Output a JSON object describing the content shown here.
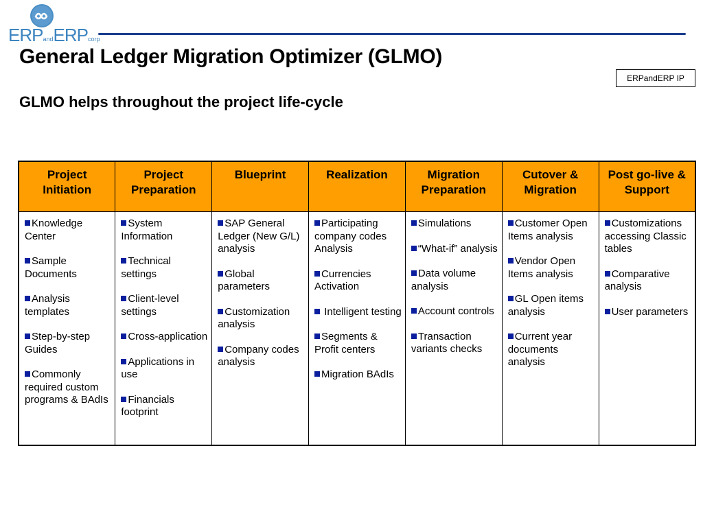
{
  "logo": {
    "part1": "ERP",
    "part2": "and",
    "part3": "ERP",
    "part4": "corp"
  },
  "title": "General Ledger Migration Optimizer (GLMO)",
  "subtitle": "GLMO helps throughout the project life-cycle",
  "ip_label": "ERPandERP IP",
  "colors": {
    "header_bg": "#ff9e00",
    "bullet": "#0b1f9e",
    "rule": "#1a3d8f",
    "logo": "#3d85c0"
  },
  "table": {
    "headers": [
      "Project Initiation",
      "Project Preparation",
      "Blueprint",
      "Realization",
      "Migration Preparation",
      "Cutover & Migration",
      "Post go-live & Support"
    ],
    "columns": [
      [
        "Knowledge Center",
        "Sample Documents",
        "Analysis templates",
        "Step-by-step Guides",
        "Commonly required custom programs & BAdIs"
      ],
      [
        "System Information",
        "Technical settings",
        "Client-level settings",
        "Cross-application",
        "Applications in use",
        "Financials footprint"
      ],
      [
        "SAP General Ledger (New G/L) analysis",
        "Global parameters",
        "Customization analysis",
        "Company codes analysis"
      ],
      [
        "Participating company codes Analysis",
        "Currencies Activation",
        " Intelligent testing",
        "Segments & Profit centers",
        "Migration BAdIs"
      ],
      [
        "Simulations",
        "“What-if” analysis",
        "Data volume analysis",
        "Account controls",
        "Transaction variants checks"
      ],
      [
        "Customer Open Items analysis",
        "Vendor Open Items analysis",
        "GL Open items analysis",
        "Current year documents analysis"
      ],
      [
        "Customizations accessing Classic tables",
        "Comparative analysis",
        "User parameters"
      ]
    ]
  }
}
